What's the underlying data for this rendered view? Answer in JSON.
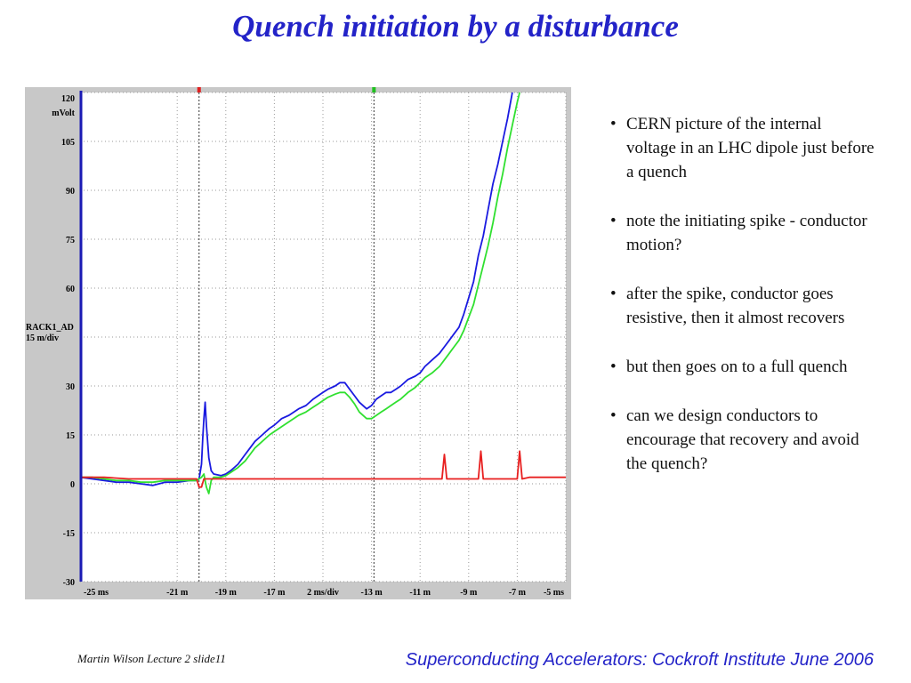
{
  "slide": {
    "title": "Quench initiation by a disturbance",
    "bullets": [
      "CERN picture of the internal voltage in an LHC dipole just before a quench",
      "note the initiating spike - conductor motion?",
      "after the spike, conductor goes resistive, then it almost recovers",
      "but then goes on to a full quench",
      "can we design conductors to encourage that recovery and avoid the quench?"
    ],
    "footer_left": "Martin Wilson Lecture 2 slide11",
    "footer_right": "Superconducting Accelerators:  Cockroft Institute June 2006"
  },
  "colors": {
    "title": "#2323c8",
    "panel_bg": "#c8c8c8",
    "plot_bg": "#ffffff",
    "grid": "#9a9a9a",
    "axis_line": "#1a1ab4"
  },
  "chart_data": {
    "type": "line",
    "title": "",
    "ylabel_unit": "mVolt",
    "channel_label": "RACK1_AD",
    "channel_scale": "15 m/div",
    "ylim": [
      -30,
      120
    ],
    "y_ticks": [
      120,
      105,
      90,
      75,
      60,
      45,
      30,
      15,
      0,
      -15,
      -30
    ],
    "y_tick_labels": [
      "120",
      "105",
      "90",
      "75",
      "60",
      "",
      "30",
      "15",
      "0",
      "-15",
      "-30"
    ],
    "xlim": [
      -25,
      -5
    ],
    "x_ticks": [
      -25,
      -21,
      -19,
      -17,
      -15,
      -13,
      -11,
      -9,
      -7,
      -5
    ],
    "x_tick_labels": [
      "-25 ms",
      "-21 m",
      "-19 m",
      "-17 m",
      "2 ms/div",
      "-13 m",
      "-11 m",
      "-9 m",
      "-7 m",
      "-5 ms"
    ],
    "cursors": [
      {
        "x": -20.1,
        "color": "#e02020"
      },
      {
        "x": -12.9,
        "color": "#20c020"
      }
    ],
    "grid": true,
    "series": [
      {
        "color": "#1a1ae0",
        "x": [
          -25,
          -24.5,
          -24,
          -23.5,
          -23,
          -22.5,
          -22,
          -21.5,
          -21,
          -20.5,
          -20.2,
          -20.1,
          -20.0,
          -19.95,
          -19.9,
          -19.85,
          -19.8,
          -19.7,
          -19.6,
          -19.5,
          -19.2,
          -19.0,
          -18.8,
          -18.5,
          -18.2,
          -18.0,
          -17.8,
          -17.5,
          -17.2,
          -17.0,
          -16.7,
          -16.4,
          -16.0,
          -15.7,
          -15.4,
          -15.2,
          -15.0,
          -14.8,
          -14.5,
          -14.3,
          -14.1,
          -13.9,
          -13.7,
          -13.5,
          -13.2,
          -13.0,
          -12.8,
          -12.6,
          -12.4,
          -12.2,
          -12.0,
          -11.8,
          -11.5,
          -11.2,
          -11.0,
          -10.8,
          -10.5,
          -10.2,
          -10.0,
          -9.8,
          -9.6,
          -9.4,
          -9.2,
          -9.0,
          -8.8,
          -8.6,
          -8.4,
          -8.2,
          -8.0,
          -7.8,
          -7.6,
          -7.4,
          -7.3,
          -7.2
        ],
        "y": [
          2,
          1.5,
          1,
          0.5,
          0.5,
          0,
          -0.5,
          0.5,
          0.5,
          1,
          1,
          1.5,
          6,
          14,
          20,
          25,
          18,
          8,
          4,
          3,
          2.5,
          3,
          4,
          6,
          9,
          11,
          13,
          15,
          17,
          18,
          20,
          21,
          23,
          24,
          26,
          27,
          28,
          29,
          30,
          31,
          31,
          29,
          27,
          25,
          23,
          24,
          26,
          27,
          28,
          28,
          29,
          30,
          32,
          33,
          34,
          36,
          38,
          40,
          42,
          44,
          46,
          48,
          52,
          57,
          62,
          70,
          76,
          84,
          92,
          98,
          105,
          112,
          116,
          120
        ]
      },
      {
        "color": "#30e030",
        "x": [
          -25,
          -24.5,
          -24,
          -23.5,
          -23,
          -22.5,
          -22,
          -21.5,
          -21,
          -20.5,
          -20.2,
          -20.0,
          -19.9,
          -19.8,
          -19.7,
          -19.6,
          -19.5,
          -19.2,
          -19.0,
          -18.8,
          -18.5,
          -18.2,
          -18.0,
          -17.8,
          -17.5,
          -17.2,
          -17.0,
          -16.7,
          -16.4,
          -16.0,
          -15.7,
          -15.4,
          -15.2,
          -15.0,
          -14.8,
          -14.5,
          -14.3,
          -14.1,
          -13.9,
          -13.7,
          -13.5,
          -13.2,
          -13.0,
          -12.8,
          -12.6,
          -12.4,
          -12.2,
          -12.0,
          -11.8,
          -11.5,
          -11.2,
          -11.0,
          -10.8,
          -10.5,
          -10.2,
          -10.0,
          -9.8,
          -9.6,
          -9.4,
          -9.2,
          -9.0,
          -8.8,
          -8.6,
          -8.4,
          -8.2,
          -8.0,
          -7.8,
          -7.6,
          -7.4,
          -7.2,
          -7.0,
          -6.9
        ],
        "y": [
          2,
          2,
          1.5,
          1,
          1,
          0.5,
          0.5,
          1,
          1,
          1,
          1,
          2,
          3,
          -1,
          -3,
          1,
          2,
          2,
          2.5,
          3.5,
          5,
          7,
          9,
          11,
          13,
          15,
          16,
          17.5,
          19,
          21,
          22,
          23.5,
          24.5,
          25.5,
          26.5,
          27.5,
          28,
          28,
          26.5,
          24.5,
          22,
          20,
          20,
          21,
          22,
          23,
          24,
          25,
          26,
          28,
          29.5,
          31,
          32.5,
          34,
          36,
          38,
          40,
          42,
          44,
          47,
          51,
          55,
          61,
          67,
          73,
          80,
          88,
          95,
          103,
          110,
          117,
          120
        ]
      },
      {
        "color": "#e82020",
        "x": [
          -25,
          -24,
          -23,
          -22,
          -21,
          -20.2,
          -20.1,
          -20.0,
          -19.9,
          -19.5,
          -19,
          -18.5,
          -18,
          -17.5,
          -17,
          -16.5,
          -16,
          -15.5,
          -15,
          -14.5,
          -14,
          -13.5,
          -13,
          -12.5,
          -12,
          -11.5,
          -11,
          -10.5,
          -10.1,
          -10.0,
          -9.9,
          -9.5,
          -9,
          -8.6,
          -8.5,
          -8.4,
          -8.0,
          -7.5,
          -7.0,
          -6.9,
          -6.8,
          -6.5,
          -6.0,
          -5.5,
          -5
        ],
        "y": [
          2,
          2,
          1.5,
          1.5,
          1.5,
          1.5,
          -1,
          -1,
          1.5,
          1.5,
          1.5,
          1.5,
          1.5,
          1.5,
          1.5,
          1.5,
          1.5,
          1.5,
          1.5,
          1.5,
          1.5,
          1.5,
          1.5,
          1.5,
          1.5,
          1.5,
          1.5,
          1.5,
          1.5,
          9,
          1.5,
          1.5,
          1.5,
          1.5,
          10,
          1.5,
          1.5,
          1.5,
          1.5,
          10,
          1.5,
          2,
          2,
          2,
          2
        ]
      }
    ]
  }
}
